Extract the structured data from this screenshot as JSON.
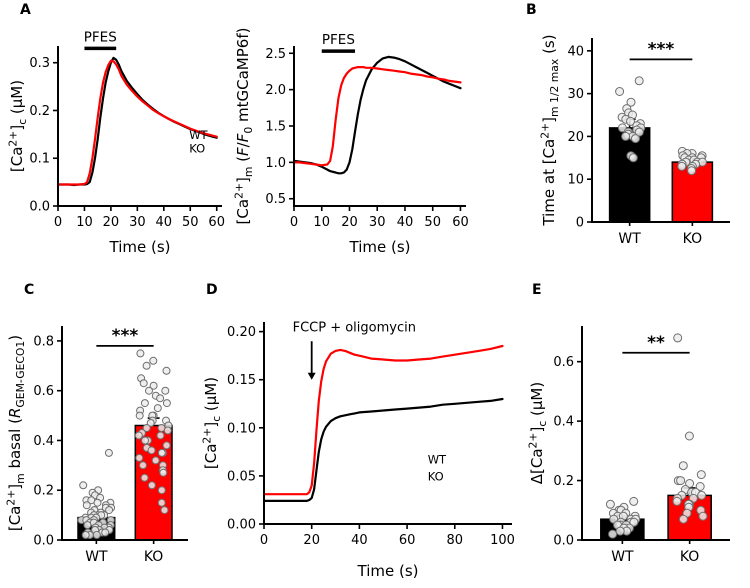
{
  "panel_labels": {
    "A": "A",
    "B": "B",
    "C": "C",
    "D": "D",
    "E": "E"
  },
  "colors": {
    "wt": "#000000",
    "ko": "#ff0000",
    "scatter_fill": "#ececec",
    "scatter_stroke": "#6e6e6e",
    "axis": "#000000",
    "background": "#ffffff"
  },
  "chart_data": [
    {
      "id": "A-cytosolic",
      "type": "line",
      "xlabel": "Time (s)",
      "ylabel_segments": [
        {
          "t": "[Ca"
        },
        {
          "t": "2+",
          "s": "sup"
        },
        {
          "t": "]"
        },
        {
          "t": "c",
          "s": "sub"
        },
        {
          "t": " (μM)"
        }
      ],
      "xlim": [
        0,
        62
      ],
      "ylim": [
        0,
        0.335
      ],
      "xticks": {
        "vals": [
          0,
          10,
          20,
          30,
          40,
          50,
          60
        ],
        "labels": [
          "0",
          "10",
          "20",
          "30",
          "40",
          "50",
          "60"
        ]
      },
      "yticks": {
        "vals": [
          0,
          0.1,
          0.2,
          0.3
        ],
        "labels": [
          "0.0",
          "0.1",
          "0.2",
          "0.3"
        ]
      },
      "stim": {
        "label": "PFES",
        "x1": 10,
        "x2": 22,
        "y": 0.33
      },
      "legend": {
        "fx": 0.8,
        "fy": 0.58,
        "dy": 0.085,
        "items": [
          {
            "label": "WT",
            "color": "#000000"
          },
          {
            "label": "KO",
            "color": "#ff0000"
          }
        ]
      },
      "series": [
        {
          "name": "WT",
          "color": "#000000",
          "x": [
            0,
            2,
            4,
            6,
            8,
            10,
            11,
            12,
            13,
            14,
            15,
            16,
            17,
            18,
            19,
            20,
            21,
            22,
            23,
            24,
            26,
            28,
            30,
            32,
            34,
            36,
            38,
            40,
            42,
            44,
            46,
            48,
            50,
            52,
            54,
            56,
            58,
            60
          ],
          "y": [
            0.045,
            0.045,
            0.045,
            0.044,
            0.045,
            0.045,
            0.046,
            0.05,
            0.07,
            0.1,
            0.14,
            0.185,
            0.225,
            0.258,
            0.282,
            0.3,
            0.31,
            0.306,
            0.296,
            0.282,
            0.262,
            0.247,
            0.234,
            0.222,
            0.212,
            0.203,
            0.195,
            0.188,
            0.182,
            0.176,
            0.171,
            0.166,
            0.161,
            0.157,
            0.153,
            0.149,
            0.146,
            0.143
          ]
        },
        {
          "name": "KO",
          "color": "#ff0000",
          "x": [
            0,
            2,
            4,
            6,
            8,
            10,
            11,
            12,
            13,
            14,
            15,
            16,
            17,
            18,
            19,
            20,
            21,
            22,
            23,
            24,
            26,
            28,
            30,
            32,
            34,
            36,
            38,
            40,
            42,
            44,
            46,
            48,
            50,
            52,
            54,
            56,
            58,
            60
          ],
          "y": [
            0.045,
            0.045,
            0.045,
            0.045,
            0.045,
            0.046,
            0.05,
            0.068,
            0.1,
            0.14,
            0.185,
            0.225,
            0.258,
            0.28,
            0.295,
            0.304,
            0.303,
            0.296,
            0.286,
            0.272,
            0.254,
            0.241,
            0.229,
            0.219,
            0.21,
            0.201,
            0.194,
            0.188,
            0.182,
            0.177,
            0.172,
            0.167,
            0.162,
            0.158,
            0.154,
            0.151,
            0.148,
            0.145
          ]
        }
      ]
    },
    {
      "id": "A-mitochondrial",
      "type": "line",
      "xlabel": "Time (s)",
      "ylabel_segments": [
        {
          "t": "[Ca"
        },
        {
          "t": "2+",
          "s": "sup"
        },
        {
          "t": "]"
        },
        {
          "t": "m",
          "s": "sub"
        },
        {
          "t": " ("
        },
        {
          "t": "F",
          "s": "i"
        },
        {
          "t": "/"
        },
        {
          "t": "F",
          "s": "i"
        },
        {
          "t": "0",
          "s": "sub"
        },
        {
          "t": " mtGCaMP6f)"
        }
      ],
      "xlim": [
        0,
        62
      ],
      "ylim": [
        0.4,
        2.6
      ],
      "xticks": {
        "vals": [
          0,
          10,
          20,
          30,
          40,
          50,
          60
        ],
        "labels": [
          "0",
          "10",
          "20",
          "30",
          "40",
          "50",
          "60"
        ]
      },
      "yticks": {
        "vals": [
          0.5,
          1.0,
          1.5,
          2.0,
          2.5
        ],
        "labels": [
          "0.5",
          "1.0",
          "1.5",
          "2.0",
          "2.5"
        ]
      },
      "stim": {
        "label": "PFES",
        "x1": 10,
        "x2": 22,
        "y": 2.53
      },
      "series": [
        {
          "name": "WT",
          "color": "#000000",
          "x": [
            0,
            2,
            4,
            6,
            8,
            10,
            12,
            13,
            14,
            15,
            16,
            17,
            18,
            19,
            20,
            21,
            22,
            23,
            24,
            25,
            26,
            28,
            30,
            32,
            34,
            36,
            38,
            40,
            42,
            44,
            46,
            48,
            50,
            52,
            54,
            56,
            58,
            60
          ],
          "y": [
            1.02,
            1.01,
            1.0,
            0.99,
            0.97,
            0.94,
            0.9,
            0.88,
            0.87,
            0.86,
            0.85,
            0.85,
            0.86,
            0.9,
            1.0,
            1.18,
            1.42,
            1.66,
            1.86,
            2.01,
            2.13,
            2.28,
            2.37,
            2.43,
            2.45,
            2.44,
            2.42,
            2.39,
            2.35,
            2.31,
            2.27,
            2.23,
            2.19,
            2.15,
            2.11,
            2.08,
            2.05,
            2.02
          ]
        },
        {
          "name": "KO",
          "color": "#ff0000",
          "x": [
            0,
            2,
            4,
            6,
            8,
            10,
            12,
            13,
            14,
            15,
            16,
            17,
            18,
            19,
            20,
            21,
            22,
            23,
            24,
            25,
            26,
            28,
            30,
            32,
            34,
            36,
            38,
            40,
            42,
            44,
            46,
            48,
            50,
            52,
            54,
            56,
            58,
            60
          ],
          "y": [
            1.0,
            1.0,
            0.99,
            0.98,
            0.97,
            0.96,
            0.97,
            1.02,
            1.22,
            1.58,
            1.88,
            2.06,
            2.16,
            2.22,
            2.26,
            2.29,
            2.3,
            2.31,
            2.31,
            2.31,
            2.3,
            2.3,
            2.29,
            2.28,
            2.27,
            2.26,
            2.25,
            2.24,
            2.22,
            2.21,
            2.2,
            2.18,
            2.17,
            2.15,
            2.14,
            2.12,
            2.11,
            2.1
          ]
        }
      ]
    },
    {
      "id": "B-half-max-time",
      "type": "bar",
      "categories": [
        "WT",
        "KO"
      ],
      "ylabel_segments": [
        {
          "t": "Time at [Ca"
        },
        {
          "t": "2+",
          "s": "sup"
        },
        {
          "t": "]"
        },
        {
          "t": "m 1/2 max",
          "s": "sub"
        },
        {
          "t": " (s)"
        }
      ],
      "xlim": [
        0.4,
        2.6
      ],
      "ylim": [
        0,
        43
      ],
      "yticks": {
        "vals": [
          0,
          10,
          20,
          30,
          40
        ],
        "labels": [
          "0",
          "10",
          "20",
          "30",
          "40"
        ]
      },
      "significance": {
        "label": "***",
        "y": 38
      },
      "bars": [
        {
          "label": "WT",
          "value": 22,
          "error": 2,
          "color": "#000000",
          "points": [
            33,
            30.5,
            28,
            26.5,
            25.5,
            25,
            24.5,
            24,
            23.5,
            23,
            22.5,
            22,
            22,
            21.5,
            21,
            21,
            20.5,
            20,
            20,
            19.5,
            15.5,
            15
          ]
        },
        {
          "label": "KO",
          "value": 14,
          "error": 0.8,
          "color": "#ff0000",
          "points": [
            16.5,
            16,
            16,
            15.5,
            15.5,
            15,
            15,
            15,
            14.5,
            14.5,
            14,
            14,
            14,
            13.5,
            13.5,
            13,
            13,
            12.5,
            12
          ]
        }
      ]
    },
    {
      "id": "C-basal-mito",
      "type": "bar",
      "categories": [
        "WT",
        "KO"
      ],
      "ylabel_segments": [
        {
          "t": "[Ca"
        },
        {
          "t": "2+",
          "s": "sup"
        },
        {
          "t": "]"
        },
        {
          "t": "m",
          "s": "sub"
        },
        {
          "t": " basal ("
        },
        {
          "t": "R",
          "s": "i"
        },
        {
          "t": "GEM-GECO1",
          "s": "sub"
        },
        {
          "t": ")"
        }
      ],
      "xlim": [
        0.4,
        2.6
      ],
      "ylim": [
        0,
        0.86
      ],
      "yticks": {
        "vals": [
          0,
          0.2,
          0.4,
          0.6,
          0.8
        ],
        "labels": [
          "0.0",
          "0.2",
          "0.4",
          "0.6",
          "0.8"
        ]
      },
      "significance": {
        "label": "***",
        "y": 0.78
      },
      "bars": [
        {
          "label": "WT",
          "value": 0.09,
          "error": 0.015,
          "color": "#000000",
          "points": [
            0.35,
            0.22,
            0.2,
            0.19,
            0.18,
            0.17,
            0.16,
            0.16,
            0.15,
            0.15,
            0.14,
            0.14,
            0.13,
            0.13,
            0.12,
            0.12,
            0.12,
            0.11,
            0.11,
            0.1,
            0.1,
            0.1,
            0.1,
            0.09,
            0.09,
            0.09,
            0.08,
            0.08,
            0.08,
            0.08,
            0.07,
            0.07,
            0.07,
            0.06,
            0.06,
            0.06,
            0.05,
            0.05,
            0.05,
            0.04,
            0.04,
            0.04,
            0.03,
            0.03,
            0.03,
            0.02,
            0.02,
            0.02
          ]
        },
        {
          "label": "KO",
          "value": 0.46,
          "error": 0.03,
          "color": "#ff0000",
          "points": [
            0.75,
            0.72,
            0.7,
            0.68,
            0.65,
            0.63,
            0.62,
            0.6,
            0.6,
            0.58,
            0.57,
            0.55,
            0.55,
            0.53,
            0.52,
            0.5,
            0.5,
            0.5,
            0.48,
            0.48,
            0.47,
            0.46,
            0.45,
            0.45,
            0.44,
            0.43,
            0.42,
            0.42,
            0.4,
            0.4,
            0.38,
            0.37,
            0.36,
            0.35,
            0.35,
            0.33,
            0.32,
            0.3,
            0.3,
            0.28,
            0.27,
            0.25,
            0.22,
            0.2,
            0.15,
            0.12
          ]
        }
      ]
    },
    {
      "id": "D-fccp-response",
      "type": "line",
      "xlabel": "Time (s)",
      "ylabel_segments": [
        {
          "t": "[Ca"
        },
        {
          "t": "2+",
          "s": "sup"
        },
        {
          "t": "]"
        },
        {
          "t": "c",
          "s": "sub"
        },
        {
          "t": " (μM)"
        }
      ],
      "xlim": [
        0,
        104
      ],
      "ylim": [
        0,
        0.21
      ],
      "xticks": {
        "vals": [
          0,
          20,
          40,
          60,
          80,
          100
        ],
        "labels": [
          "0",
          "20",
          "40",
          "60",
          "80",
          "100"
        ]
      },
      "yticks": {
        "vals": [
          0,
          0.05,
          0.1,
          0.15,
          0.2
        ],
        "labels": [
          "0.00",
          "0.05",
          "0.10",
          "0.15",
          "0.20"
        ]
      },
      "anno": {
        "text": "FCCP + oligomycin",
        "text_x": 12,
        "text_y": 0.2,
        "arrow_x": 20,
        "y1": 0.19,
        "y2": 0.15
      },
      "legend": {
        "fx": 0.66,
        "fy": 0.7,
        "dy": 0.085,
        "items": [
          {
            "label": "WT",
            "color": "#000000"
          },
          {
            "label": "KO",
            "color": "#ff0000"
          }
        ]
      },
      "series": [
        {
          "name": "WT",
          "color": "#000000",
          "x": [
            0,
            5,
            10,
            15,
            18,
            19,
            20,
            21,
            22,
            23,
            24,
            25,
            26,
            28,
            30,
            32,
            34,
            36,
            38,
            40,
            45,
            50,
            55,
            60,
            65,
            70,
            75,
            80,
            85,
            90,
            95,
            100
          ],
          "y": [
            0.024,
            0.024,
            0.024,
            0.024,
            0.024,
            0.025,
            0.027,
            0.036,
            0.056,
            0.075,
            0.088,
            0.096,
            0.101,
            0.107,
            0.11,
            0.112,
            0.113,
            0.114,
            0.115,
            0.116,
            0.117,
            0.118,
            0.119,
            0.12,
            0.121,
            0.122,
            0.124,
            0.125,
            0.126,
            0.127,
            0.128,
            0.13
          ]
        },
        {
          "name": "KO",
          "color": "#ff0000",
          "x": [
            0,
            5,
            10,
            15,
            18,
            19,
            20,
            21,
            22,
            23,
            24,
            25,
            26,
            28,
            30,
            32,
            34,
            36,
            38,
            40,
            45,
            50,
            55,
            60,
            65,
            70,
            75,
            80,
            85,
            90,
            95,
            100
          ],
          "y": [
            0.031,
            0.031,
            0.031,
            0.031,
            0.031,
            0.033,
            0.04,
            0.063,
            0.098,
            0.128,
            0.148,
            0.161,
            0.169,
            0.177,
            0.18,
            0.181,
            0.18,
            0.178,
            0.176,
            0.175,
            0.172,
            0.171,
            0.17,
            0.17,
            0.171,
            0.172,
            0.174,
            0.176,
            0.178,
            0.18,
            0.182,
            0.185
          ]
        }
      ]
    },
    {
      "id": "E-delta-cytosolic",
      "type": "bar",
      "categories": [
        "WT",
        "KO"
      ],
      "ylabel_segments": [
        {
          "t": "Δ[Ca"
        },
        {
          "t": "2+",
          "s": "sup"
        },
        {
          "t": "]"
        },
        {
          "t": "c",
          "s": "sub"
        },
        {
          "t": " (μM)"
        }
      ],
      "xlim": [
        0.4,
        2.6
      ],
      "ylim": [
        0,
        0.72
      ],
      "yticks": {
        "vals": [
          0,
          0.2,
          0.4,
          0.6
        ],
        "labels": [
          "0.0",
          "0.2",
          "0.4",
          "0.6"
        ]
      },
      "significance": {
        "label": "**",
        "y": 0.63
      },
      "bars": [
        {
          "label": "WT",
          "value": 0.07,
          "error": 0.012,
          "color": "#000000",
          "points": [
            0.13,
            0.12,
            0.11,
            0.1,
            0.1,
            0.09,
            0.09,
            0.08,
            0.08,
            0.08,
            0.07,
            0.07,
            0.07,
            0.06,
            0.06,
            0.06,
            0.05,
            0.05,
            0.05,
            0.04,
            0.04,
            0.03,
            0.03,
            0.02
          ]
        },
        {
          "label": "KO",
          "value": 0.15,
          "error": 0.025,
          "color": "#ff0000",
          "points": [
            0.68,
            0.35,
            0.25,
            0.22,
            0.2,
            0.2,
            0.19,
            0.18,
            0.17,
            0.16,
            0.16,
            0.15,
            0.15,
            0.14,
            0.14,
            0.13,
            0.12,
            0.12,
            0.11,
            0.1,
            0.09,
            0.08,
            0.07
          ]
        }
      ]
    }
  ]
}
